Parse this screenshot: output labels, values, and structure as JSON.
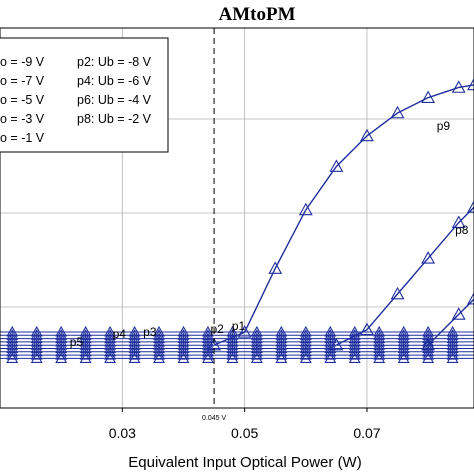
{
  "chart_data": {
    "type": "line",
    "title": "AMtoPM",
    "xlabel": "Equivalent Input Optical Power (W)",
    "ylabel": "",
    "xlim": [
      0.01,
      0.0875
    ],
    "x_ticks": [
      "0.03",
      "0.05",
      "0.07"
    ],
    "x_tick_values": [
      0.03,
      0.05,
      0.07
    ],
    "grid": true,
    "legend_position": "top-left",
    "legend": [
      {
        "text": "o = -9 V"
      },
      {
        "text": "p2: Ub = -8 V"
      },
      {
        "text": "o = -7 V"
      },
      {
        "text": "p4: Ub = -6 V"
      },
      {
        "text": "o = -5 V"
      },
      {
        "text": "p6: Ub = -4 V"
      },
      {
        "text": "o = -3 V"
      },
      {
        "text": "p8: Ub = -2 V"
      },
      {
        "text": "o = -1 V"
      }
    ],
    "vline": {
      "x": 0.045,
      "label": "0.045 V"
    },
    "annotations": [
      {
        "text": "p5",
        "x": 0.0225
      },
      {
        "text": "p4",
        "x": 0.0295
      },
      {
        "text": "p3",
        "x": 0.0345
      },
      {
        "text": "p2",
        "x": 0.0455
      },
      {
        "text": "p1",
        "x": 0.049
      },
      {
        "text": "p9",
        "x": 0.0825
      },
      {
        "text": "p8",
        "x": 0.0855
      }
    ],
    "series": [
      {
        "name": "p1",
        "x": [
          0.045,
          0.05,
          0.055,
          0.06,
          0.065,
          0.07,
          0.075,
          0.08,
          0.085,
          0.0875
        ],
        "y": [
          0.0,
          0.05,
          0.3,
          0.53,
          0.7,
          0.82,
          0.91,
          0.97,
          1.01,
          1.02
        ]
      },
      {
        "name": "p8",
        "x": [
          0.065,
          0.07,
          0.075,
          0.08,
          0.085,
          0.0875
        ],
        "y": [
          0.0,
          0.06,
          0.2,
          0.34,
          0.48,
          0.54
        ]
      },
      {
        "name": "p9",
        "x": [
          0.08,
          0.085,
          0.0875
        ],
        "y": [
          0.0,
          0.12,
          0.18
        ]
      }
    ],
    "flat_series_count": 9,
    "flat_series_x": [
      0.012,
      0.016,
      0.02,
      0.024,
      0.028,
      0.032,
      0.036,
      0.04,
      0.044,
      0.048,
      0.052,
      0.056,
      0.06,
      0.064,
      0.068,
      0.072,
      0.076,
      0.08,
      0.084
    ],
    "colors": {
      "series": "#1f2f9e",
      "grid": "#b4b4b4",
      "vline": "#000000"
    }
  }
}
